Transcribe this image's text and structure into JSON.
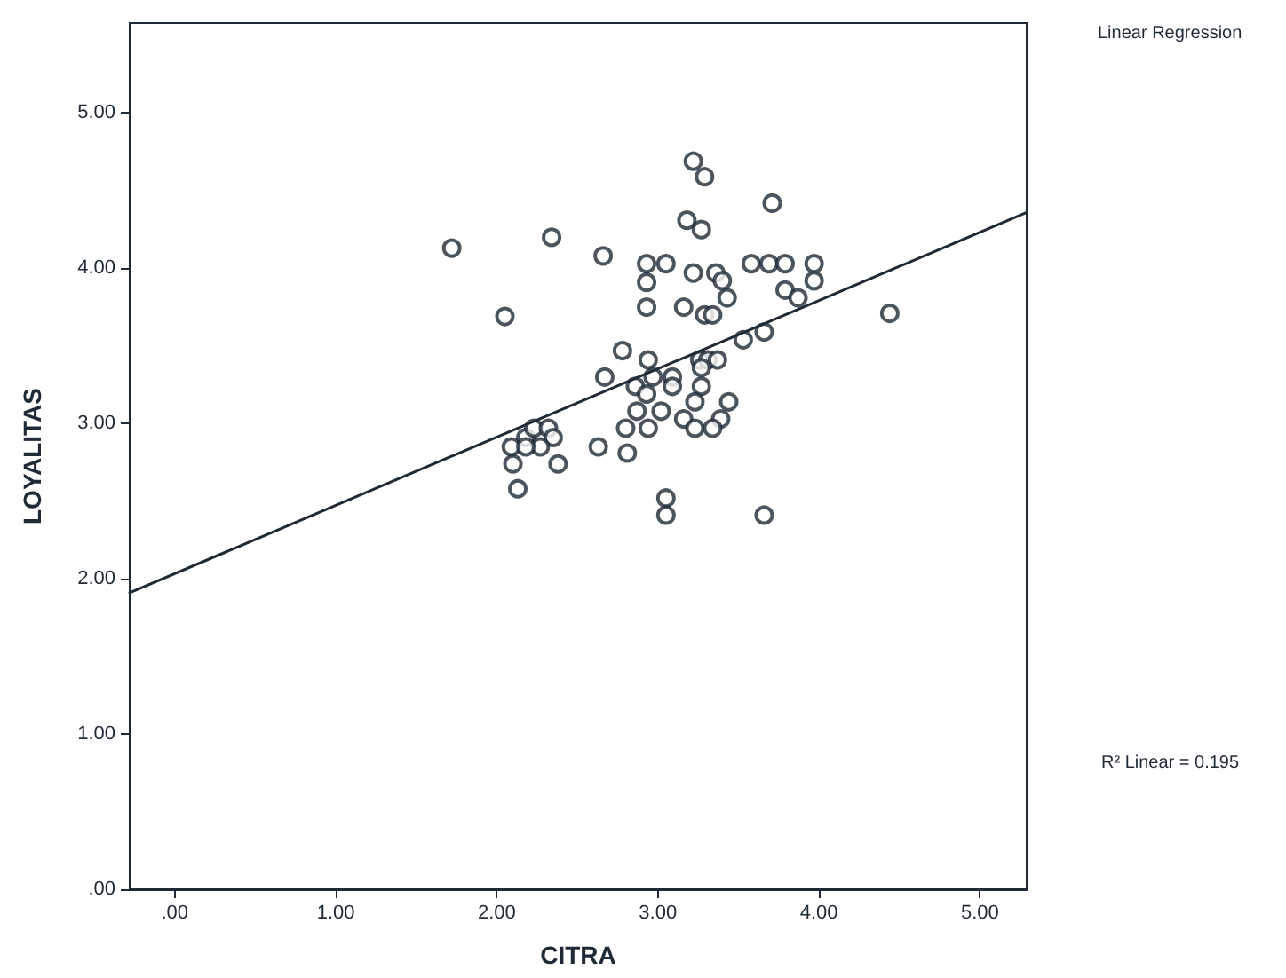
{
  "chart_data": {
    "type": "scatter",
    "xlabel": "CITRA",
    "ylabel": "LOYALITAS",
    "annotations": [
      "Linear Regression",
      "R² Linear = 0.195"
    ],
    "xlim": [
      -0.28,
      5.29
    ],
    "ylim": [
      0,
      5.58
    ],
    "xticks": [
      {
        "value": 0,
        "label": ".00"
      },
      {
        "value": 1,
        "label": "1.00"
      },
      {
        "value": 2,
        "label": "2.00"
      },
      {
        "value": 3,
        "label": "3.00"
      },
      {
        "value": 4,
        "label": "4.00"
      },
      {
        "value": 5,
        "label": "5.00"
      }
    ],
    "yticks": [
      {
        "value": 0,
        "label": ".00"
      },
      {
        "value": 1,
        "label": "1.00"
      },
      {
        "value": 2,
        "label": "2.00"
      },
      {
        "value": 3,
        "label": "3.00"
      },
      {
        "value": 4,
        "label": "4.00"
      },
      {
        "value": 5,
        "label": "5.00"
      }
    ],
    "grid": false,
    "marker": "circle",
    "series": [
      {
        "color": "#1f2a36",
        "x": [
          1.72,
          2.34,
          2.05,
          2.66,
          2.93,
          3.05,
          2.93,
          2.93,
          3.22,
          3.29,
          3.18,
          3.27,
          3.71,
          3.22,
          3.36,
          3.4,
          3.43,
          3.16,
          3.29,
          3.34,
          3.58,
          3.69,
          3.79,
          3.97,
          3.97,
          3.79,
          3.87,
          4.44,
          3.66,
          3.53,
          2.78,
          2.94,
          2.67,
          3.26,
          3.31,
          3.37,
          3.27,
          2.86,
          2.97,
          3.09,
          2.93,
          3.09,
          3.27,
          2.87,
          3.02,
          3.23,
          3.44,
          3.16,
          3.39,
          2.8,
          2.94,
          3.23,
          3.34,
          2.81,
          2.63,
          2.09,
          2.18,
          2.23,
          2.32,
          2.35,
          2.27,
          2.18,
          2.1,
          2.38,
          2.13,
          3.05,
          3.05,
          3.66
        ],
        "values": [
          4.13,
          4.2,
          3.69,
          4.08,
          4.03,
          4.03,
          3.91,
          3.75,
          4.69,
          4.59,
          4.31,
          4.25,
          4.42,
          3.97,
          3.97,
          3.92,
          3.81,
          3.75,
          3.7,
          3.7,
          4.03,
          4.03,
          4.03,
          4.03,
          3.92,
          3.86,
          3.81,
          3.71,
          3.59,
          3.54,
          3.47,
          3.41,
          3.3,
          3.41,
          3.41,
          3.41,
          3.36,
          3.24,
          3.3,
          3.3,
          3.19,
          3.24,
          3.24,
          3.08,
          3.08,
          3.14,
          3.14,
          3.03,
          3.03,
          2.97,
          2.97,
          2.97,
          2.97,
          2.81,
          2.85,
          2.85,
          2.91,
          2.97,
          2.97,
          2.91,
          2.85,
          2.85,
          2.74,
          2.74,
          2.58,
          2.52,
          2.41,
          2.41
        ]
      },
      {
        "type": "line",
        "color": "#1f2a36",
        "x": [
          -0.28,
          5.29
        ],
        "values": [
          1.91,
          4.36
        ],
        "marker": "none",
        "line_style": "solid"
      }
    ]
  }
}
